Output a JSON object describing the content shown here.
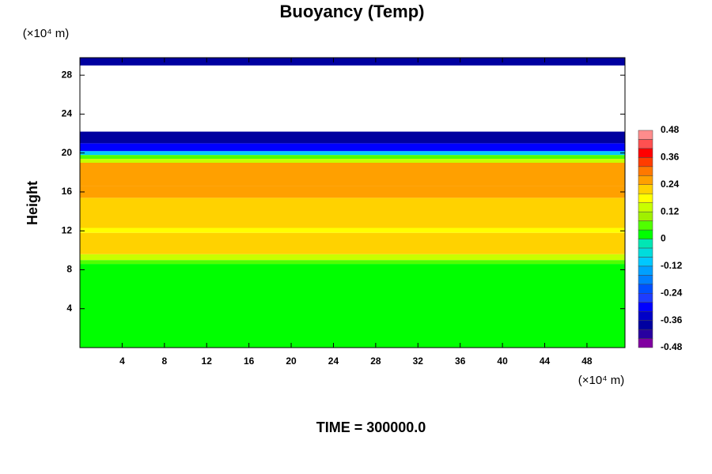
{
  "chart_data": {
    "type": "contour-bands",
    "title": "Buoyancy (Temp)",
    "ylabel": "Height",
    "yunit": "(×10⁴ m)",
    "xunit": "(×10⁴ m)",
    "footer": "TIME = 300000.0",
    "xlim": [
      0,
      51.6
    ],
    "xticks": [
      4,
      8,
      12,
      16,
      20,
      24,
      28,
      32,
      36,
      40,
      44,
      48
    ],
    "ylim": [
      0,
      29.8
    ],
    "yticks": [
      4,
      8,
      12,
      16,
      20,
      24,
      28
    ],
    "y_edges": [
      0,
      8.6,
      9.0,
      9.6,
      11.8,
      12.3,
      15.4,
      16.6,
      19.0,
      19.4,
      19.8,
      20.2,
      21.0,
      22.2,
      29.0,
      29.8
    ],
    "values": [
      0.02,
      0.06,
      0.14,
      0.22,
      0.18,
      0.22,
      0.26,
      0.27,
      0.15,
      0.05,
      -0.1,
      -0.3,
      -0.38,
      null,
      -0.38
    ],
    "clim": [
      -0.48,
      0.48
    ],
    "cticks": [
      -0.48,
      -0.36,
      -0.24,
      -0.12,
      0,
      0.12,
      0.24,
      0.36,
      0.48
    ],
    "colors": [
      "#8000a0",
      "#2800a0",
      "#0000a0",
      "#0000c8",
      "#0000ff",
      "#1e3cff",
      "#0050ff",
      "#0080ff",
      "#00a0ff",
      "#00c8ff",
      "#00dcdc",
      "#00e6b4",
      "#00ff00",
      "#50ff00",
      "#a0f000",
      "#c8ff00",
      "#ffff00",
      "#ffd200",
      "#ffa000",
      "#ff7800",
      "#ff3c00",
      "#ff0000",
      "#ff5050",
      "#ff8c8c"
    ]
  }
}
